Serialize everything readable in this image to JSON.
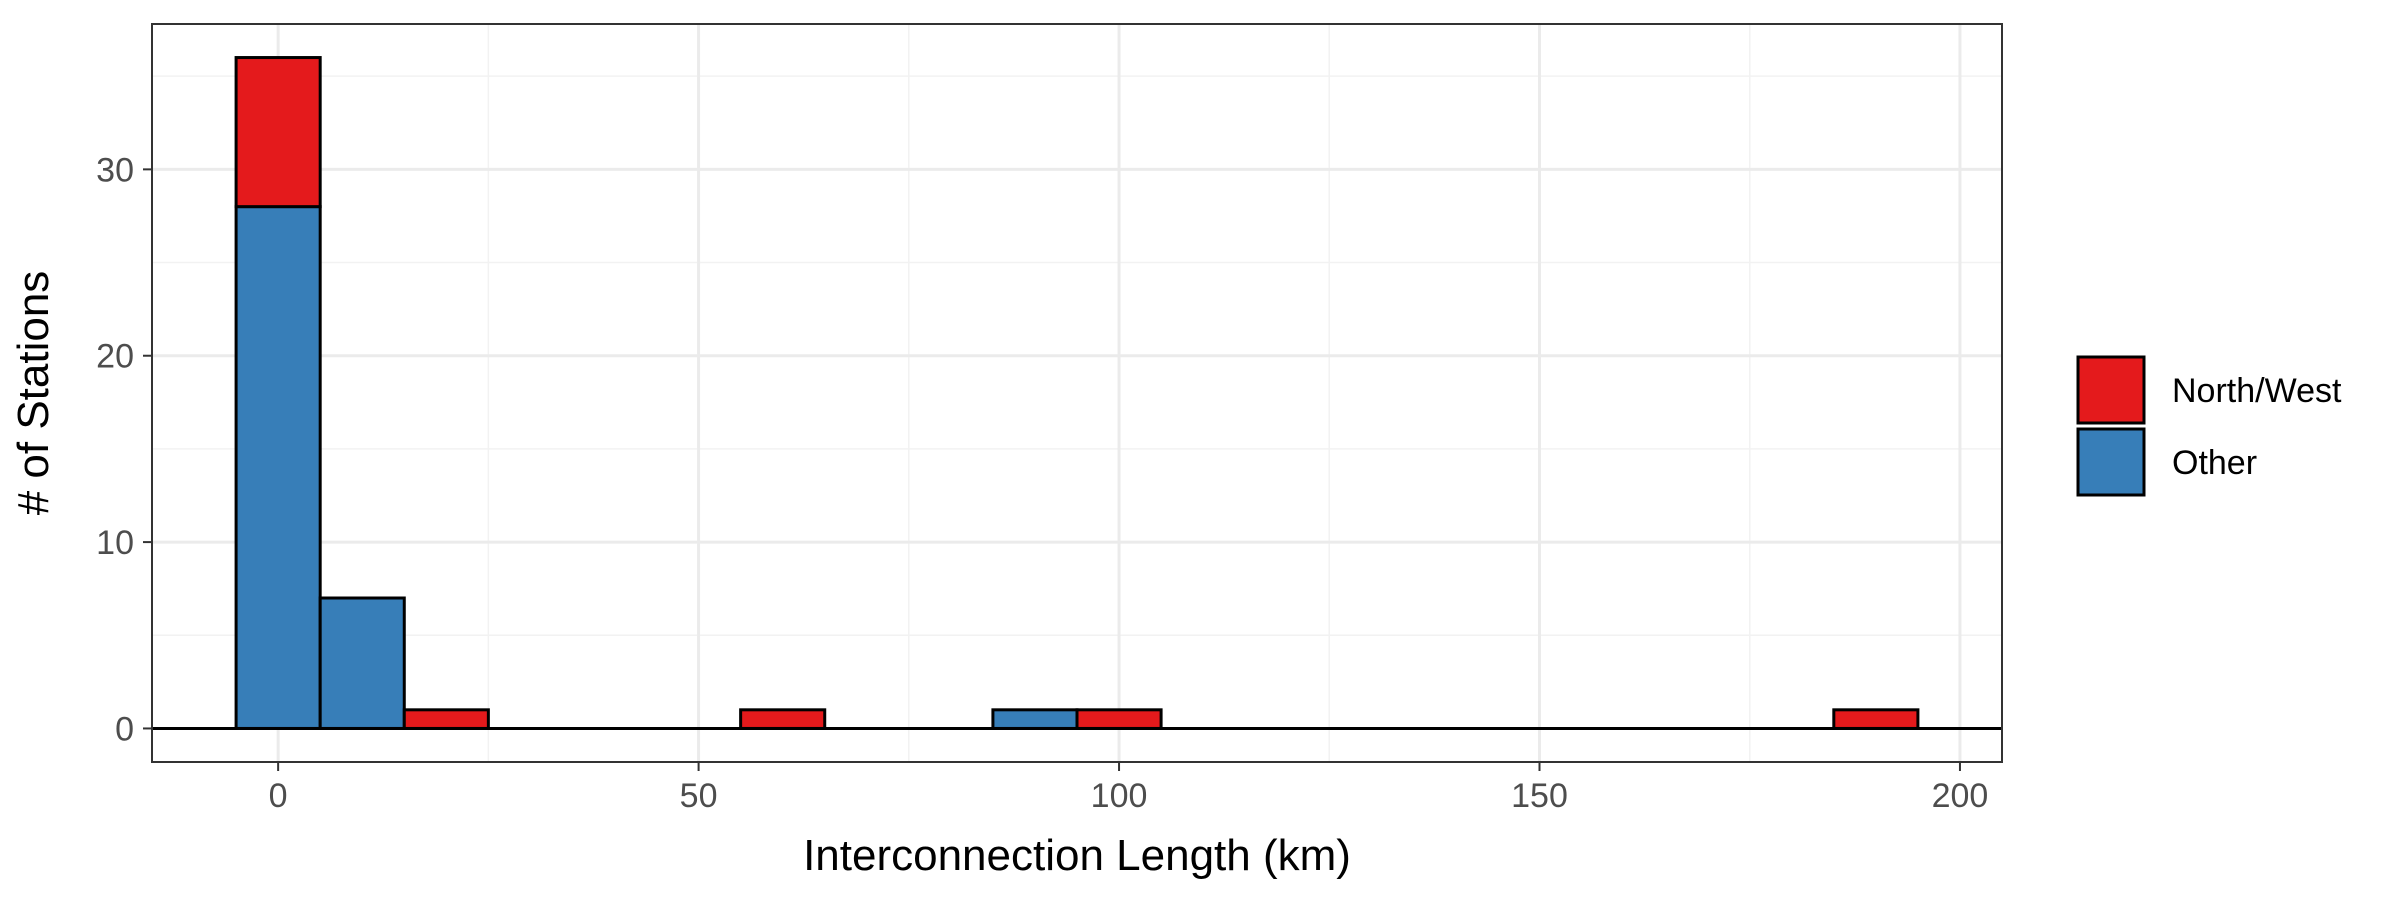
{
  "chart_data": {
    "type": "bar",
    "stacked": true,
    "binwidth": 10,
    "bin_centers": [
      0,
      10,
      20,
      60,
      90,
      100,
      190
    ],
    "series": [
      {
        "name": "Other",
        "color": "#377EB8",
        "values": [
          28,
          7,
          0,
          0,
          1,
          0,
          0
        ]
      },
      {
        "name": "North/West",
        "color": "#E41A1C",
        "values": [
          8,
          0,
          1,
          1,
          0,
          1,
          1
        ]
      }
    ],
    "xlabel": "Interconnection Length (km)",
    "ylabel": "# of Stations",
    "xlim": [
      -15,
      205
    ],
    "ylim": [
      -1.8,
      37.8
    ],
    "xticks": [
      0,
      50,
      100,
      150,
      200
    ],
    "yticks": [
      0,
      10,
      20,
      30
    ],
    "grid": true,
    "legend_position": "right",
    "theme": "bw"
  }
}
